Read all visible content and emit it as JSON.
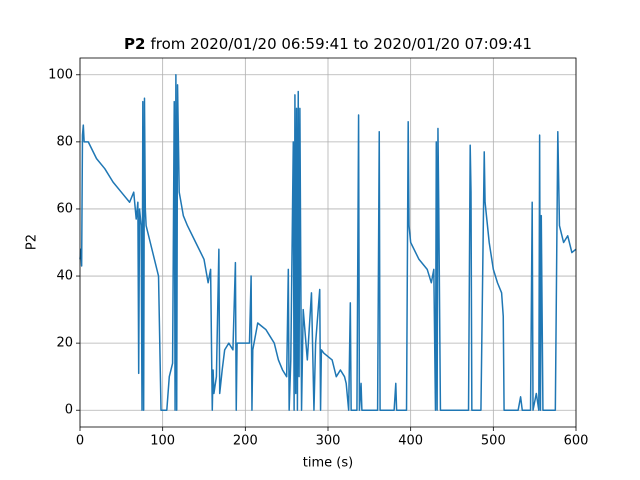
{
  "chart_data": {
    "type": "line",
    "title": "P2",
    "subtitle": "from 2020/01/20 06:59:41 to 2020/01/20 07:09:41",
    "xlabel": "time (s)",
    "ylabel": "P2",
    "xlim": [
      0,
      600
    ],
    "ylim": [
      -5,
      105
    ],
    "xticks": [
      0,
      100,
      200,
      300,
      400,
      500,
      600
    ],
    "yticks": [
      0,
      20,
      40,
      60,
      80,
      100
    ],
    "grid": true,
    "color": "#1f77b4",
    "x": [
      0,
      1,
      2,
      3,
      4,
      5,
      10,
      20,
      30,
      40,
      50,
      60,
      65,
      68,
      70,
      71,
      72,
      74,
      75,
      76,
      77,
      78,
      79,
      80,
      85,
      90,
      95,
      98,
      105,
      108,
      112,
      114,
      115,
      116,
      117,
      118,
      120,
      125,
      130,
      140,
      150,
      155,
      158,
      160,
      161,
      162,
      165,
      168,
      169,
      172,
      175,
      180,
      185,
      188,
      189,
      190,
      195,
      205,
      207,
      208,
      209,
      215,
      220,
      225,
      230,
      235,
      240,
      245,
      250,
      252,
      253,
      255,
      258,
      259,
      260,
      261,
      262,
      263,
      264,
      265,
      266,
      268,
      270,
      275,
      280,
      283,
      285,
      290,
      291,
      292,
      295,
      300,
      305,
      310,
      315,
      320,
      322,
      325,
      327,
      328,
      335,
      337,
      338,
      340,
      341,
      345,
      360,
      362,
      363,
      380,
      382,
      383,
      395,
      397,
      398,
      400,
      410,
      420,
      425,
      428,
      430,
      431,
      432,
      433,
      434,
      436,
      440,
      450,
      470,
      472,
      473,
      474,
      478,
      485,
      489,
      490,
      495,
      500,
      505,
      510,
      512,
      513,
      530,
      533,
      535,
      545,
      547,
      548,
      552,
      555,
      556,
      557,
      558,
      560,
      575,
      578,
      580,
      585,
      590,
      595,
      600
    ],
    "values": [
      45,
      48,
      43,
      82,
      85,
      80,
      80,
      75,
      72,
      68,
      65,
      62,
      65,
      57,
      62,
      11,
      60,
      55,
      0,
      92,
      0,
      93,
      60,
      55,
      50,
      45,
      40,
      0,
      0,
      10,
      14,
      92,
      0,
      100,
      0,
      97,
      65,
      58,
      55,
      50,
      45,
      38,
      42,
      0,
      12,
      5,
      10,
      48,
      5,
      12,
      18,
      20,
      18,
      44,
      0,
      20,
      20,
      20,
      40,
      0,
      18,
      26,
      25,
      24,
      22,
      20,
      15,
      12,
      10,
      42,
      0,
      15,
      80,
      0,
      94,
      5,
      90,
      0,
      95,
      10,
      90,
      0,
      30,
      15,
      35,
      0,
      20,
      36,
      0,
      18,
      17,
      16,
      15,
      10,
      12,
      10,
      8,
      0,
      32,
      0,
      0,
      88,
      0,
      8,
      0,
      0,
      0,
      83,
      0,
      0,
      8,
      0,
      0,
      86,
      55,
      50,
      45,
      42,
      38,
      42,
      0,
      80,
      0,
      84,
      60,
      0,
      0,
      0,
      0,
      79,
      65,
      0,
      0,
      0,
      77,
      62,
      50,
      42,
      38,
      35,
      28,
      0,
      0,
      4,
      0,
      0,
      62,
      0,
      5,
      0,
      82,
      0,
      58,
      0,
      0,
      83,
      55,
      50,
      52,
      47,
      48
    ]
  }
}
